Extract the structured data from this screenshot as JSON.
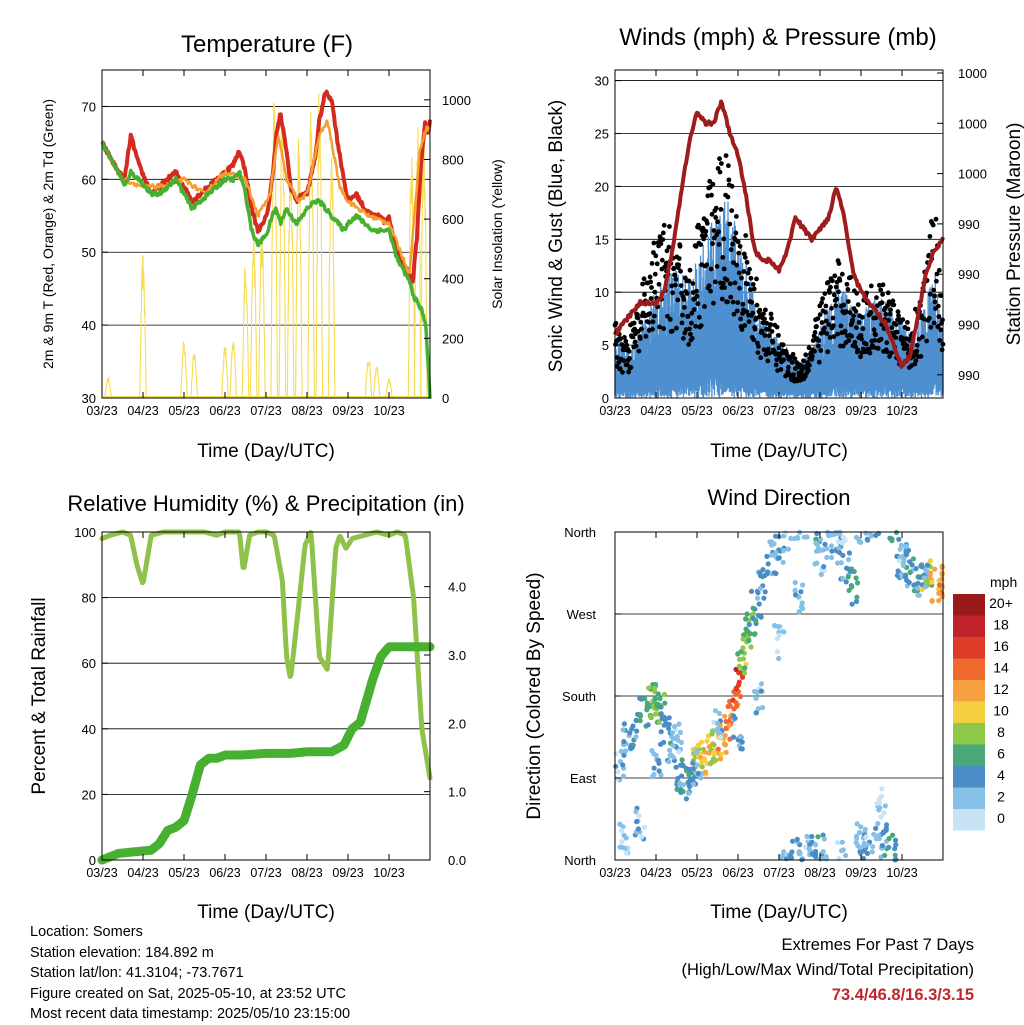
{
  "chart_data": [
    {
      "type": "line",
      "title": "Temperature (F)",
      "xlabel": "Time (Day/UTC)",
      "ylabel": "2m & 9m T (Red, Orange) & 2m Td (Green)",
      "y2label": "Solar Insolation (Yellow)",
      "x_ticks": [
        "03/23",
        "04/23",
        "05/23",
        "06/23",
        "07/23",
        "08/23",
        "09/23",
        "10/23"
      ],
      "ylim": [
        30,
        75
      ],
      "y_ticks": [
        30,
        40,
        50,
        60,
        70
      ],
      "y2lim": [
        0,
        1100
      ],
      "y2_ticks": [
        0,
        200,
        400,
        600,
        800,
        1000
      ],
      "grid": true,
      "series": [
        {
          "color": "#d42a20",
          "x": [
            0,
            0.2,
            0.4,
            0.55,
            0.7,
            0.9,
            1.05,
            1.2,
            1.4,
            1.6,
            1.8,
            2.0,
            2.2,
            2.4,
            2.6,
            2.8,
            3.0,
            3.2,
            3.35,
            3.5,
            3.65,
            3.8,
            3.95,
            4.05,
            4.15,
            4.25,
            4.35,
            4.5,
            4.6,
            4.75,
            4.9,
            5.0,
            5.2,
            5.3,
            5.45,
            5.6,
            5.75,
            5.9,
            6.0,
            6.2,
            6.4,
            6.6,
            6.8,
            6.9,
            7.0,
            7.1,
            7.2,
            7.3,
            7.4,
            7.5,
            7.58,
            7.68,
            7.78,
            7.88,
            7.95,
            8.0
          ],
          "y": [
            65,
            63,
            61,
            60,
            66,
            62,
            60,
            58,
            59,
            60,
            61,
            59,
            57,
            58,
            59,
            60,
            61,
            62,
            64,
            61,
            56,
            53,
            54,
            56,
            60,
            66,
            69,
            64,
            59,
            57,
            58,
            58,
            63,
            68,
            72,
            71,
            65,
            60,
            57,
            58,
            56,
            55,
            55,
            54,
            55,
            52,
            50,
            49,
            48,
            47,
            46,
            52,
            62,
            68,
            66,
            68
          ]
        },
        {
          "color": "#f4a030",
          "x": [
            0,
            0.5,
            1.0,
            1.5,
            2.0,
            2.5,
            3.0,
            3.5,
            3.8,
            4.1,
            4.3,
            4.5,
            4.8,
            5.0,
            5.3,
            5.5,
            5.8,
            6.0,
            6.5,
            7.0,
            7.5,
            7.75,
            7.9,
            8.0
          ],
          "y": [
            65,
            60,
            59,
            59,
            60,
            58,
            61,
            60,
            55,
            58,
            66,
            60,
            57,
            58,
            66,
            68,
            59,
            57,
            55,
            54,
            47,
            64,
            67,
            67
          ]
        },
        {
          "color": "#48b031",
          "x": [
            0,
            0.2,
            0.4,
            0.55,
            0.7,
            0.9,
            1.05,
            1.2,
            1.4,
            1.6,
            1.8,
            2.0,
            2.2,
            2.4,
            2.6,
            2.8,
            3.0,
            3.2,
            3.35,
            3.5,
            3.65,
            3.8,
            3.95,
            4.05,
            4.15,
            4.25,
            4.35,
            4.5,
            4.6,
            4.75,
            4.9,
            5.0,
            5.2,
            5.3,
            5.45,
            5.6,
            5.75,
            5.9,
            6.0,
            6.2,
            6.4,
            6.6,
            6.8,
            6.9,
            7.0,
            7.1,
            7.2,
            7.3,
            7.4,
            7.5,
            7.6,
            7.7,
            7.8,
            7.9,
            7.95,
            8.0
          ],
          "y": [
            65,
            63,
            61,
            59,
            61,
            60,
            59,
            58,
            58,
            59,
            60,
            58,
            56,
            57,
            58,
            59,
            60,
            60,
            61,
            58,
            53,
            51,
            52,
            53,
            55,
            56,
            54,
            56,
            55,
            54,
            55,
            56,
            57,
            57,
            56,
            55,
            54,
            53,
            54,
            55,
            54,
            53,
            53,
            53,
            53,
            51,
            49,
            48,
            47,
            46,
            44,
            43,
            42,
            40,
            35,
            30
          ]
        }
      ],
      "insolation": {
        "color": "#f7dc55",
        "days": [
          0.15,
          1.0,
          2.0,
          2.25,
          3.0,
          3.2,
          3.5,
          3.7,
          3.9,
          4.2,
          4.4,
          4.6,
          4.8,
          5.1,
          5.3,
          5.6,
          6.5,
          6.7,
          7.0,
          7.55,
          7.7,
          7.85
        ],
        "peaks": [
          70,
          490,
          200,
          160,
          180,
          200,
          480,
          560,
          590,
          1070,
          1060,
          860,
          880,
          1000,
          1070,
          900,
          140,
          110,
          70,
          820,
          960,
          920
        ]
      }
    },
    {
      "type": "line",
      "title": "Winds (mph) & Pressure (mb)",
      "xlabel": "Time (Day/UTC)",
      "ylabel": "Sonic Wind & Gust (Blue, Black)",
      "y2label": "Station Pressure (Maroon)",
      "x_ticks": [
        "03/23",
        "04/23",
        "05/23",
        "06/23",
        "07/23",
        "08/23",
        "09/23",
        "10/23"
      ],
      "ylim": [
        0,
        31
      ],
      "y_ticks": [
        0,
        5,
        10,
        15,
        20,
        25,
        30
      ],
      "y2_tick_labels": [
        "1000",
        "1000",
        "1000",
        "990",
        "990",
        "990",
        "990"
      ],
      "grid": true,
      "wind": {
        "color": "#4e8fd0",
        "x": [
          0,
          0.3,
          0.6,
          0.9,
          1.2,
          1.5,
          1.8,
          2.1,
          2.4,
          2.7,
          3.0,
          3.3,
          3.6,
          3.9,
          4.2,
          4.5,
          4.8,
          5.1,
          5.4,
          5.7,
          6.0,
          6.3,
          6.6,
          6.9,
          7.2,
          7.5,
          7.8,
          8.0
        ],
        "y": [
          4,
          3,
          4,
          6,
          7,
          8,
          7,
          9,
          11,
          12,
          10,
          7,
          5,
          4,
          3,
          2,
          3,
          5,
          7,
          6,
          5,
          6,
          6,
          5,
          4,
          5,
          8,
          4
        ]
      },
      "gust": {
        "color": "#000000",
        "x": [
          0,
          0.3,
          0.6,
          0.9,
          1.2,
          1.5,
          1.8,
          2.1,
          2.4,
          2.7,
          3.0,
          3.3,
          3.6,
          3.9,
          4.2,
          4.5,
          4.8,
          5.1,
          5.4,
          5.7,
          6.0,
          6.3,
          6.6,
          6.9,
          7.2,
          7.5,
          7.8,
          8.0
        ],
        "y": [
          6,
          5,
          8,
          12,
          14,
          13,
          10,
          15,
          18,
          20,
          16,
          11,
          8,
          6,
          4,
          3,
          5,
          9,
          11,
          10,
          8,
          9,
          9,
          7,
          6,
          9,
          16,
          6
        ]
      },
      "pressure": {
        "color": "#9e1c1c",
        "x": [
          0,
          0.2,
          0.4,
          0.6,
          0.8,
          1.0,
          1.2,
          1.4,
          1.6,
          1.8,
          2.0,
          2.2,
          2.4,
          2.6,
          2.8,
          3.0,
          3.2,
          3.4,
          3.6,
          3.8,
          4.0,
          4.2,
          4.4,
          4.6,
          4.8,
          5.0,
          5.2,
          5.4,
          5.6,
          5.8,
          6.0,
          6.2,
          6.4,
          6.6,
          6.8,
          7.0,
          7.2,
          7.4,
          7.6,
          7.8,
          8.0
        ],
        "y": [
          6,
          7,
          8,
          9,
          9,
          9,
          10,
          14,
          19,
          24,
          27,
          26,
          26,
          28,
          25,
          23,
          19,
          14,
          13,
          13,
          12,
          14,
          17,
          16,
          15,
          16,
          17,
          20,
          17,
          12,
          10,
          9,
          8,
          7,
          5,
          3,
          4,
          8,
          12,
          14,
          15
        ]
      }
    },
    {
      "type": "line",
      "title": "Relative Humidity (%) & Precipitation (in)",
      "xlabel": "Time (Day/UTC)",
      "ylabel": "Percent & Total Rainfall",
      "x_ticks": [
        "03/23",
        "04/23",
        "05/23",
        "06/23",
        "07/23",
        "08/23",
        "09/23",
        "10/23"
      ],
      "ylim": [
        0,
        100
      ],
      "y_ticks": [
        0,
        20,
        40,
        60,
        80,
        100
      ],
      "y2lim": [
        0,
        4.8
      ],
      "y2_ticks": [
        "0.0",
        "1.0",
        "2.0",
        "3.0",
        "4.0"
      ],
      "grid": true,
      "series": [
        {
          "color": "#8ec24a",
          "x": [
            0,
            0.2,
            0.5,
            0.7,
            0.85,
            1.0,
            1.2,
            1.5,
            2.0,
            2.5,
            2.8,
            3.0,
            3.2,
            3.35,
            3.45,
            3.6,
            3.8,
            4.0,
            4.2,
            4.4,
            4.5,
            4.6,
            4.8,
            4.95,
            5.1,
            5.3,
            5.5,
            5.7,
            5.8,
            5.95,
            6.1,
            6.4,
            6.7,
            7.0,
            7.2,
            7.4,
            7.6,
            7.8,
            8.0
          ],
          "y": [
            98,
            99,
            100,
            99,
            90,
            84,
            99,
            100,
            100,
            100,
            99,
            100,
            100,
            100,
            88,
            99,
            100,
            100,
            99,
            85,
            62,
            55,
            78,
            96,
            100,
            62,
            58,
            95,
            99,
            95,
            98,
            99,
            100,
            99,
            100,
            99,
            80,
            40,
            25
          ]
        },
        {
          "color": "#48b031",
          "x": [
            0,
            0.2,
            0.4,
            0.8,
            1.2,
            1.4,
            1.6,
            1.8,
            2.0,
            2.2,
            2.4,
            2.6,
            2.8,
            3.0,
            3.4,
            4.0,
            4.6,
            5.0,
            5.3,
            5.6,
            5.9,
            6.1,
            6.3,
            6.6,
            6.8,
            7.0,
            7.4,
            7.8,
            8.0
          ],
          "y": [
            0,
            1,
            2,
            2.5,
            3,
            5,
            9,
            10,
            12,
            20,
            29,
            31,
            31,
            32,
            32,
            32.5,
            32.5,
            33,
            33,
            33,
            35,
            40,
            42,
            55,
            62,
            65,
            65,
            65,
            65
          ]
        }
      ]
    },
    {
      "type": "scatter",
      "title": "Wind Direction",
      "xlabel": "Time (Day/UTC)",
      "ylabel": "Direction (Colored By Speed)",
      "x_ticks": [
        "03/23",
        "04/23",
        "05/23",
        "06/23",
        "07/23",
        "08/23",
        "09/23",
        "10/23"
      ],
      "y_ticks": [
        "North",
        "East",
        "South",
        "West",
        "North"
      ],
      "legend_title": "mph",
      "legend_labels": [
        "0",
        "2",
        "4",
        "6",
        "8",
        "10",
        "12",
        "14",
        "16",
        "18",
        "20+"
      ],
      "legend_colors": [
        "#c6e4f6",
        "#86c0e6",
        "#4a8cc6",
        "#48a878",
        "#8cc84a",
        "#f4d040",
        "#f6a040",
        "#f06a30",
        "#e03a28",
        "#c0222a",
        "#9a1a1c"
      ],
      "x": [
        0.1,
        0.3,
        0.5,
        0.7,
        0.9,
        1.0,
        1.1,
        1.25,
        1.4,
        1.55,
        1.7,
        1.85,
        2.0,
        2.15,
        2.3,
        2.45,
        2.6,
        2.75,
        2.9,
        3.0,
        3.1,
        3.2,
        3.3,
        3.45,
        3.6,
        3.8,
        4.0,
        4.2,
        4.4,
        4.6,
        4.8,
        5.0,
        5.2,
        5.4,
        5.6,
        5.8,
        6.0,
        6.2,
        6.4,
        6.6,
        6.8,
        7.0,
        7.2,
        7.4,
        7.6,
        7.8,
        8.0,
        0.2,
        0.6,
        1.0,
        1.5,
        2.0,
        2.5,
        3.0,
        3.5,
        4.0,
        4.5,
        5.0,
        5.5,
        6.0,
        6.5,
        7.0,
        7.5
      ],
      "y": [
        105,
        130,
        140,
        160,
        175,
        170,
        165,
        145,
        120,
        90,
        85,
        95,
        115,
        110,
        120,
        125,
        130,
        150,
        170,
        190,
        220,
        245,
        260,
        275,
        300,
        330,
        345,
        350,
        5,
        10,
        15,
        8,
        350,
        340,
        320,
        300,
        5,
        10,
        15,
        20,
        10,
        330,
        320,
        315,
        310,
        300,
        305,
        20,
        40,
        110,
        130,
        100,
        150,
        140,
        180,
        240,
        290,
        330,
        5,
        20,
        60,
        330,
        310
      ],
      "speed": [
        2,
        3,
        4,
        5,
        7,
        8,
        6,
        4,
        3,
        4,
        3,
        4,
        9,
        10,
        11,
        9,
        12,
        13,
        14,
        16,
        8,
        7,
        6,
        5,
        4,
        3,
        4,
        2,
        3,
        2,
        3,
        4,
        2,
        3,
        4,
        5,
        2,
        3,
        3,
        4,
        5,
        3,
        4,
        5,
        8,
        11,
        12,
        1,
        2,
        3,
        2,
        3,
        2,
        3,
        2,
        1,
        2,
        2,
        1,
        2,
        1,
        2,
        3
      ]
    }
  ],
  "info": {
    "location": "Location: Somers",
    "elevation": "Station elevation: 184.892 m",
    "latlon": "Station lat/lon: 41.3104; -73.7671",
    "created": "Figure created on Sat, 2025-05-10, at 23:52 UTC",
    "recent": "Most recent data timestamp: 2025/05/10 23:15:00"
  },
  "extremes": {
    "title": "Extremes For Past 7 Days",
    "subtitle": "(High/Low/Max Wind/Total Precipitation)",
    "values": "73.4/46.8/16.3/3.15"
  }
}
